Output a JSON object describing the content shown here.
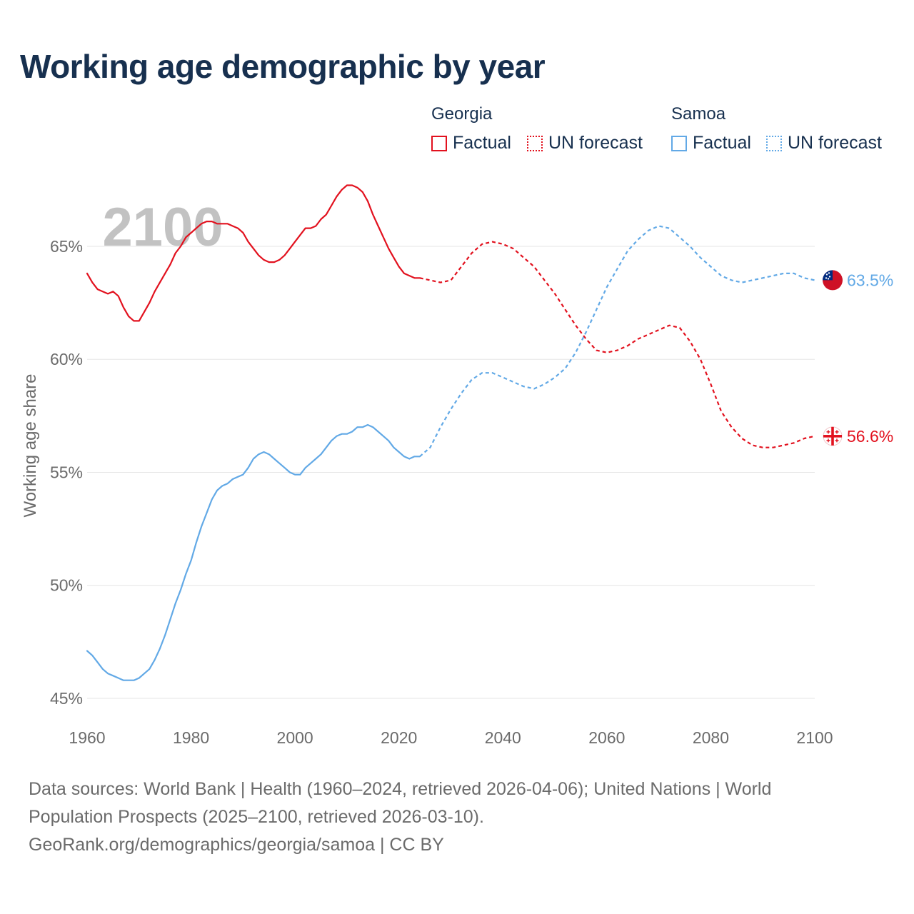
{
  "title": "Working age demographic by year",
  "legend": {
    "groups": [
      {
        "name": "Georgia",
        "factual": "Factual",
        "forecast": "UN forecast",
        "color": "#e2111e"
      },
      {
        "name": "Samoa",
        "factual": "Factual",
        "forecast": "UN forecast",
        "color": "#62a9e6"
      }
    ]
  },
  "source": {
    "line1": "Data sources: World Bank | Health (1960–2024, retrieved 2026-04-06); United Nations | World",
    "line2": "Population Prospects (2025–2100, retrieved 2026-03-10).",
    "line3": "GeoRank.org/demographics/georgia/samoa | CC BY"
  },
  "chart_data": {
    "type": "line",
    "title": "Working age demographic by year",
    "year_label": "2100",
    "xlabel": "",
    "ylabel": "Working age share",
    "xlim": [
      1960,
      2100
    ],
    "ylim": [
      45,
      68
    ],
    "xticks": [
      1960,
      1980,
      2000,
      2020,
      2040,
      2060,
      2080,
      2100
    ],
    "xtick_labels": [
      "1960",
      "1980",
      "2000",
      "2020",
      "2040",
      "2060",
      "2080",
      "2100"
    ],
    "yticks": [
      45,
      50,
      55,
      60,
      65
    ],
    "ytick_labels": [
      "45%",
      "50%",
      "55%",
      "60%",
      "65%"
    ],
    "grid": true,
    "forecast_start": 2024,
    "series": [
      {
        "name": "Georgia",
        "color": "#e2111e",
        "end_label": "56.6%",
        "x": [
          1960,
          1961,
          1962,
          1963,
          1964,
          1965,
          1966,
          1967,
          1968,
          1969,
          1970,
          1971,
          1972,
          1973,
          1974,
          1975,
          1976,
          1977,
          1978,
          1979,
          1980,
          1981,
          1982,
          1983,
          1984,
          1985,
          1986,
          1987,
          1988,
          1989,
          1990,
          1991,
          1992,
          1993,
          1994,
          1995,
          1996,
          1997,
          1998,
          1999,
          2000,
          2001,
          2002,
          2003,
          2004,
          2005,
          2006,
          2007,
          2008,
          2009,
          2010,
          2011,
          2012,
          2013,
          2014,
          2015,
          2016,
          2017,
          2018,
          2019,
          2020,
          2021,
          2022,
          2023,
          2024,
          2026,
          2028,
          2030,
          2032,
          2034,
          2036,
          2038,
          2040,
          2042,
          2044,
          2046,
          2048,
          2050,
          2052,
          2054,
          2056,
          2058,
          2060,
          2062,
          2064,
          2066,
          2068,
          2070,
          2072,
          2074,
          2076,
          2078,
          2080,
          2082,
          2084,
          2086,
          2088,
          2090,
          2092,
          2094,
          2096,
          2098,
          2100
        ],
        "values": [
          63.8,
          63.4,
          63.1,
          63.0,
          62.9,
          63.0,
          62.8,
          62.3,
          61.9,
          61.7,
          61.7,
          62.1,
          62.5,
          63.0,
          63.4,
          63.8,
          64.2,
          64.7,
          65.0,
          65.4,
          65.6,
          65.8,
          66.0,
          66.1,
          66.1,
          66.0,
          66.0,
          66.0,
          65.9,
          65.8,
          65.6,
          65.2,
          64.9,
          64.6,
          64.4,
          64.3,
          64.3,
          64.4,
          64.6,
          64.9,
          65.2,
          65.5,
          65.8,
          65.8,
          65.9,
          66.2,
          66.4,
          66.8,
          67.2,
          67.5,
          67.7,
          67.7,
          67.6,
          67.4,
          67.0,
          66.4,
          65.9,
          65.4,
          64.9,
          64.5,
          64.1,
          63.8,
          63.7,
          63.6,
          63.6,
          63.5,
          63.4,
          63.5,
          64.1,
          64.7,
          65.1,
          65.2,
          65.1,
          64.9,
          64.5,
          64.1,
          63.5,
          62.9,
          62.2,
          61.5,
          60.9,
          60.4,
          60.3,
          60.4,
          60.6,
          60.9,
          61.1,
          61.3,
          61.5,
          61.4,
          60.8,
          60.0,
          58.9,
          57.7,
          57.0,
          56.5,
          56.2,
          56.1,
          56.1,
          56.2,
          56.3,
          56.5,
          56.6
        ]
      },
      {
        "name": "Samoa",
        "color": "#62a9e6",
        "end_label": "63.5%",
        "x": [
          1960,
          1961,
          1962,
          1963,
          1964,
          1965,
          1966,
          1967,
          1968,
          1969,
          1970,
          1971,
          1972,
          1973,
          1974,
          1975,
          1976,
          1977,
          1978,
          1979,
          1980,
          1981,
          1982,
          1983,
          1984,
          1985,
          1986,
          1987,
          1988,
          1989,
          1990,
          1991,
          1992,
          1993,
          1994,
          1995,
          1996,
          1997,
          1998,
          1999,
          2000,
          2001,
          2002,
          2003,
          2004,
          2005,
          2006,
          2007,
          2008,
          2009,
          2010,
          2011,
          2012,
          2013,
          2014,
          2015,
          2016,
          2017,
          2018,
          2019,
          2020,
          2021,
          2022,
          2023,
          2024,
          2026,
          2028,
          2030,
          2032,
          2034,
          2036,
          2038,
          2040,
          2042,
          2044,
          2046,
          2048,
          2050,
          2052,
          2054,
          2056,
          2058,
          2060,
          2062,
          2064,
          2066,
          2068,
          2070,
          2072,
          2074,
          2076,
          2078,
          2080,
          2082,
          2084,
          2086,
          2088,
          2090,
          2092,
          2094,
          2096,
          2098,
          2100
        ],
        "values": [
          47.1,
          46.9,
          46.6,
          46.3,
          46.1,
          46.0,
          45.9,
          45.8,
          45.8,
          45.8,
          45.9,
          46.1,
          46.3,
          46.7,
          47.2,
          47.8,
          48.5,
          49.2,
          49.8,
          50.5,
          51.1,
          51.9,
          52.6,
          53.2,
          53.8,
          54.2,
          54.4,
          54.5,
          54.7,
          54.8,
          54.9,
          55.2,
          55.6,
          55.8,
          55.9,
          55.8,
          55.6,
          55.4,
          55.2,
          55.0,
          54.9,
          54.9,
          55.2,
          55.4,
          55.6,
          55.8,
          56.1,
          56.4,
          56.6,
          56.7,
          56.7,
          56.8,
          57.0,
          57.0,
          57.1,
          57.0,
          56.8,
          56.6,
          56.4,
          56.1,
          55.9,
          55.7,
          55.6,
          55.7,
          55.7,
          56.1,
          57.0,
          57.8,
          58.5,
          59.1,
          59.4,
          59.4,
          59.2,
          59.0,
          58.8,
          58.7,
          58.9,
          59.2,
          59.6,
          60.3,
          61.2,
          62.2,
          63.2,
          64.0,
          64.8,
          65.3,
          65.7,
          65.9,
          65.8,
          65.4,
          65.0,
          64.5,
          64.1,
          63.7,
          63.5,
          63.4,
          63.5,
          63.6,
          63.7,
          63.8,
          63.8,
          63.6,
          63.5
        ]
      }
    ]
  }
}
